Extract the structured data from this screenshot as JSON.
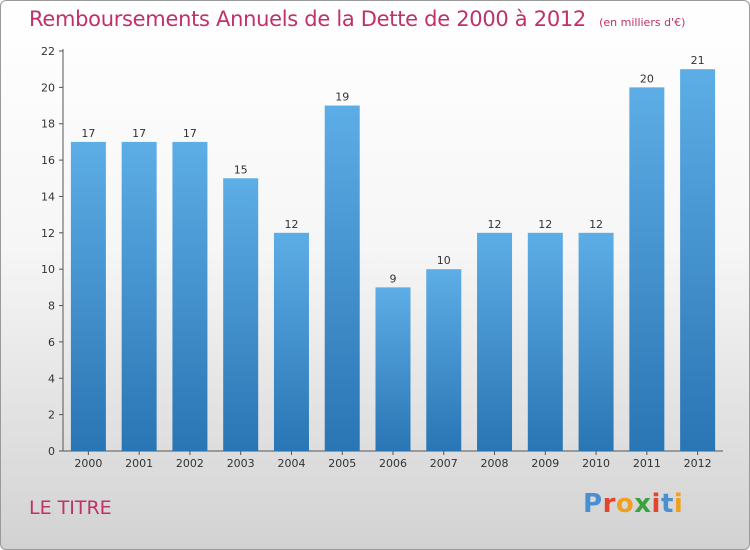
{
  "chart_data": {
    "type": "bar",
    "title": "Remboursements Annuels de la Dette de 2000 à 2012",
    "subtitle": "(en milliers d'€)",
    "categories": [
      "2000",
      "2001",
      "2002",
      "2003",
      "2004",
      "2005",
      "2006",
      "2007",
      "2008",
      "2009",
      "2010",
      "2011",
      "2012"
    ],
    "values": [
      17,
      17,
      17,
      15,
      12,
      19,
      9,
      10,
      12,
      12,
      12,
      20,
      21
    ],
    "ylim": [
      0,
      22
    ],
    "yticks": [
      0,
      2,
      4,
      6,
      8,
      10,
      12,
      14,
      16,
      18,
      20,
      22
    ],
    "grid": false,
    "bar_color_top": "#5dade6",
    "bar_color_bottom": "#2a75b4"
  },
  "footer": {
    "commune": "LE TITRE",
    "logo_letters": [
      "P",
      "r",
      "o",
      "x",
      "i",
      "t",
      "i"
    ],
    "logo_colors": [
      "#4a8fd0",
      "#e2452b",
      "#f0a020",
      "#3aa33a",
      "#e2452b",
      "#4a8fd0",
      "#f0a020"
    ]
  }
}
